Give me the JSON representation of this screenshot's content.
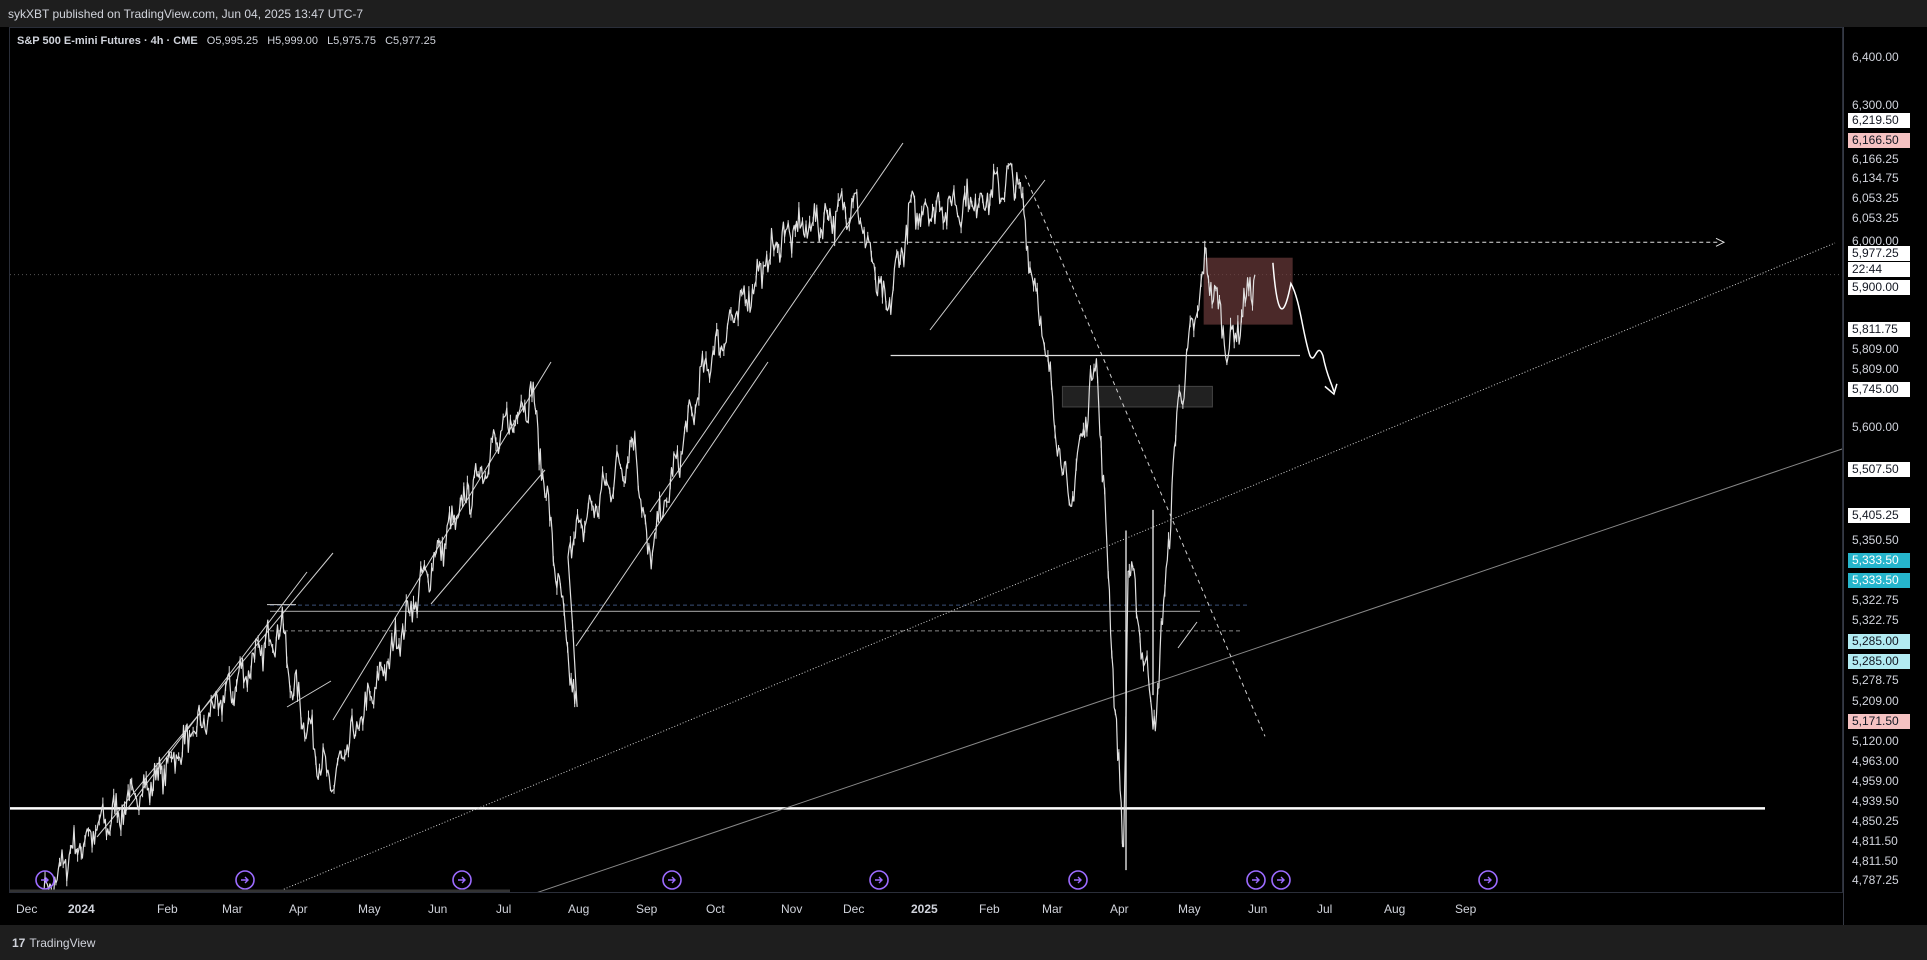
{
  "header": {
    "published": "sykXBT published on TradingView.com, Jun 04, 2025 13:47 UTC-7"
  },
  "legend": {
    "symbol": "S&P 500 E-mini Futures · 4h · CME",
    "open": "O5,995.25",
    "high": "H5,999.00",
    "low": "L5,975.75",
    "close": "C5,977.25"
  },
  "footer": {
    "logo": "TradingView",
    "logo_mark": "17"
  },
  "colors": {
    "background": "#000000",
    "candles": "#e0e0e0",
    "text": "#d1d4dc",
    "highlight_red": "#f5c2c2",
    "highlight_teal": "#26b5cc",
    "highlight_lightteal": "#b2ebf2",
    "box_red": "#6b3a3a",
    "events": "#9c6bff"
  },
  "price_axis": {
    "labels": [
      {
        "text": "6,400.00",
        "style": "plain"
      },
      {
        "text": "6,300.00",
        "style": "plain"
      },
      {
        "text": "6,219.50",
        "style": "white"
      },
      {
        "text": "6,166.50",
        "style": "red"
      },
      {
        "text": "6,166.25",
        "style": "plain"
      },
      {
        "text": "6,134.75",
        "style": "plain"
      },
      {
        "text": "6,053.25",
        "style": "plain"
      },
      {
        "text": "6,053.25",
        "style": "plain"
      },
      {
        "text": "6,000.00",
        "style": "plain"
      },
      {
        "text": "5,977.25",
        "style": "white"
      },
      {
        "text": "22:44",
        "style": "white"
      },
      {
        "text": "5,900.00",
        "style": "white"
      },
      {
        "text": "5,811.75",
        "style": "white"
      },
      {
        "text": "5,809.00",
        "style": "plain"
      },
      {
        "text": "5,809.00",
        "style": "plain"
      },
      {
        "text": "5,745.00",
        "style": "white"
      },
      {
        "text": "5,600.00",
        "style": "plain"
      },
      {
        "text": "5,507.50",
        "style": "white"
      },
      {
        "text": "5,405.25",
        "style": "white"
      },
      {
        "text": "5,350.50",
        "style": "plain"
      },
      {
        "text": "5,333.50",
        "style": "teal"
      },
      {
        "text": "5,333.50",
        "style": "teal"
      },
      {
        "text": "5,322.75",
        "style": "plain"
      },
      {
        "text": "5,322.75",
        "style": "plain"
      },
      {
        "text": "5,285.00",
        "style": "lightteal"
      },
      {
        "text": "5,285.00",
        "style": "lightteal"
      },
      {
        "text": "5,278.75",
        "style": "plain"
      },
      {
        "text": "5,209.00",
        "style": "plain"
      },
      {
        "text": "5,171.50",
        "style": "red"
      },
      {
        "text": "5,120.00",
        "style": "plain"
      },
      {
        "text": "4,963.00",
        "style": "plain"
      },
      {
        "text": "4,959.00",
        "style": "plain"
      },
      {
        "text": "4,939.50",
        "style": "plain"
      },
      {
        "text": "4,850.25",
        "style": "plain"
      },
      {
        "text": "4,811.50",
        "style": "plain"
      },
      {
        "text": "4,811.50",
        "style": "plain"
      },
      {
        "text": "4,787.25",
        "style": "plain"
      }
    ]
  },
  "time_axis": {
    "labels": [
      {
        "text": "Dec",
        "bold": false
      },
      {
        "text": "2024",
        "bold": true
      },
      {
        "text": "Feb",
        "bold": false
      },
      {
        "text": "Mar",
        "bold": false
      },
      {
        "text": "Apr",
        "bold": false
      },
      {
        "text": "May",
        "bold": false
      },
      {
        "text": "Jun",
        "bold": false
      },
      {
        "text": "Jul",
        "bold": false
      },
      {
        "text": "Aug",
        "bold": false
      },
      {
        "text": "Sep",
        "bold": false
      },
      {
        "text": "Oct",
        "bold": false
      },
      {
        "text": "Nov",
        "bold": false
      },
      {
        "text": "Dec",
        "bold": false
      },
      {
        "text": "2025",
        "bold": true
      },
      {
        "text": "Feb",
        "bold": false
      },
      {
        "text": "Mar",
        "bold": false
      },
      {
        "text": "Apr",
        "bold": false
      },
      {
        "text": "May",
        "bold": false
      },
      {
        "text": "Jun",
        "bold": false
      },
      {
        "text": "Jul",
        "bold": false
      },
      {
        "text": "Aug",
        "bold": false
      },
      {
        "text": "Sep",
        "bold": false
      }
    ]
  },
  "chart_data": {
    "type": "line",
    "title": "S&P 500 E-mini Futures · 4h · CME",
    "x": [
      "2023-12",
      "2024-01",
      "2024-02",
      "2024-03",
      "2024-03-28",
      "2024-04",
      "2024-04-19",
      "2024-05",
      "2024-06",
      "2024-07",
      "2024-07-16",
      "2024-08-05",
      "2024-08",
      "2024-09",
      "2024-09-06",
      "2024-10",
      "2024-11",
      "2024-12",
      "2024-12-06",
      "2024-12-20",
      "2025-01",
      "2025-02",
      "2025-02-19",
      "2025-03",
      "2025-03-13",
      "2025-03-25",
      "2025-04-07",
      "2025-04-09",
      "2025-04-21",
      "2025-05",
      "2025-05-13",
      "2025-05-23",
      "2025-06-04"
    ],
    "series": [
      {
        "values": [
          4650,
          4850,
          5000,
          5150,
          5300,
          5200,
          4980,
          5100,
          5400,
          5650,
          5750,
          5110,
          5450,
          5650,
          5420,
          5800,
          6050,
          6100,
          6130,
          5900,
          6100,
          6120,
          6170,
          5870,
          5520,
          5820,
          4840,
          5430,
          5100,
          5720,
          6000,
          5830,
          5977
        ]
      }
    ],
    "ylim": [
      4787.25,
      6400
    ],
    "events": [
      "Jan 2024",
      "Mar 2024",
      "Jun 2024",
      "Sep 2024",
      "Dec 2024",
      "Mar 2025",
      "May 2025",
      "May 2025",
      "Aug 2025"
    ],
    "annotations": {
      "dashed_resistance": 6040,
      "support_box_high": 5760,
      "support_box_low": 5720,
      "red_box_high": 6010,
      "red_box_low": 5880,
      "horizontal_level": 5820,
      "zone_upper": 5335,
      "zone_lower": 5285,
      "bottom_level": 4940
    }
  }
}
